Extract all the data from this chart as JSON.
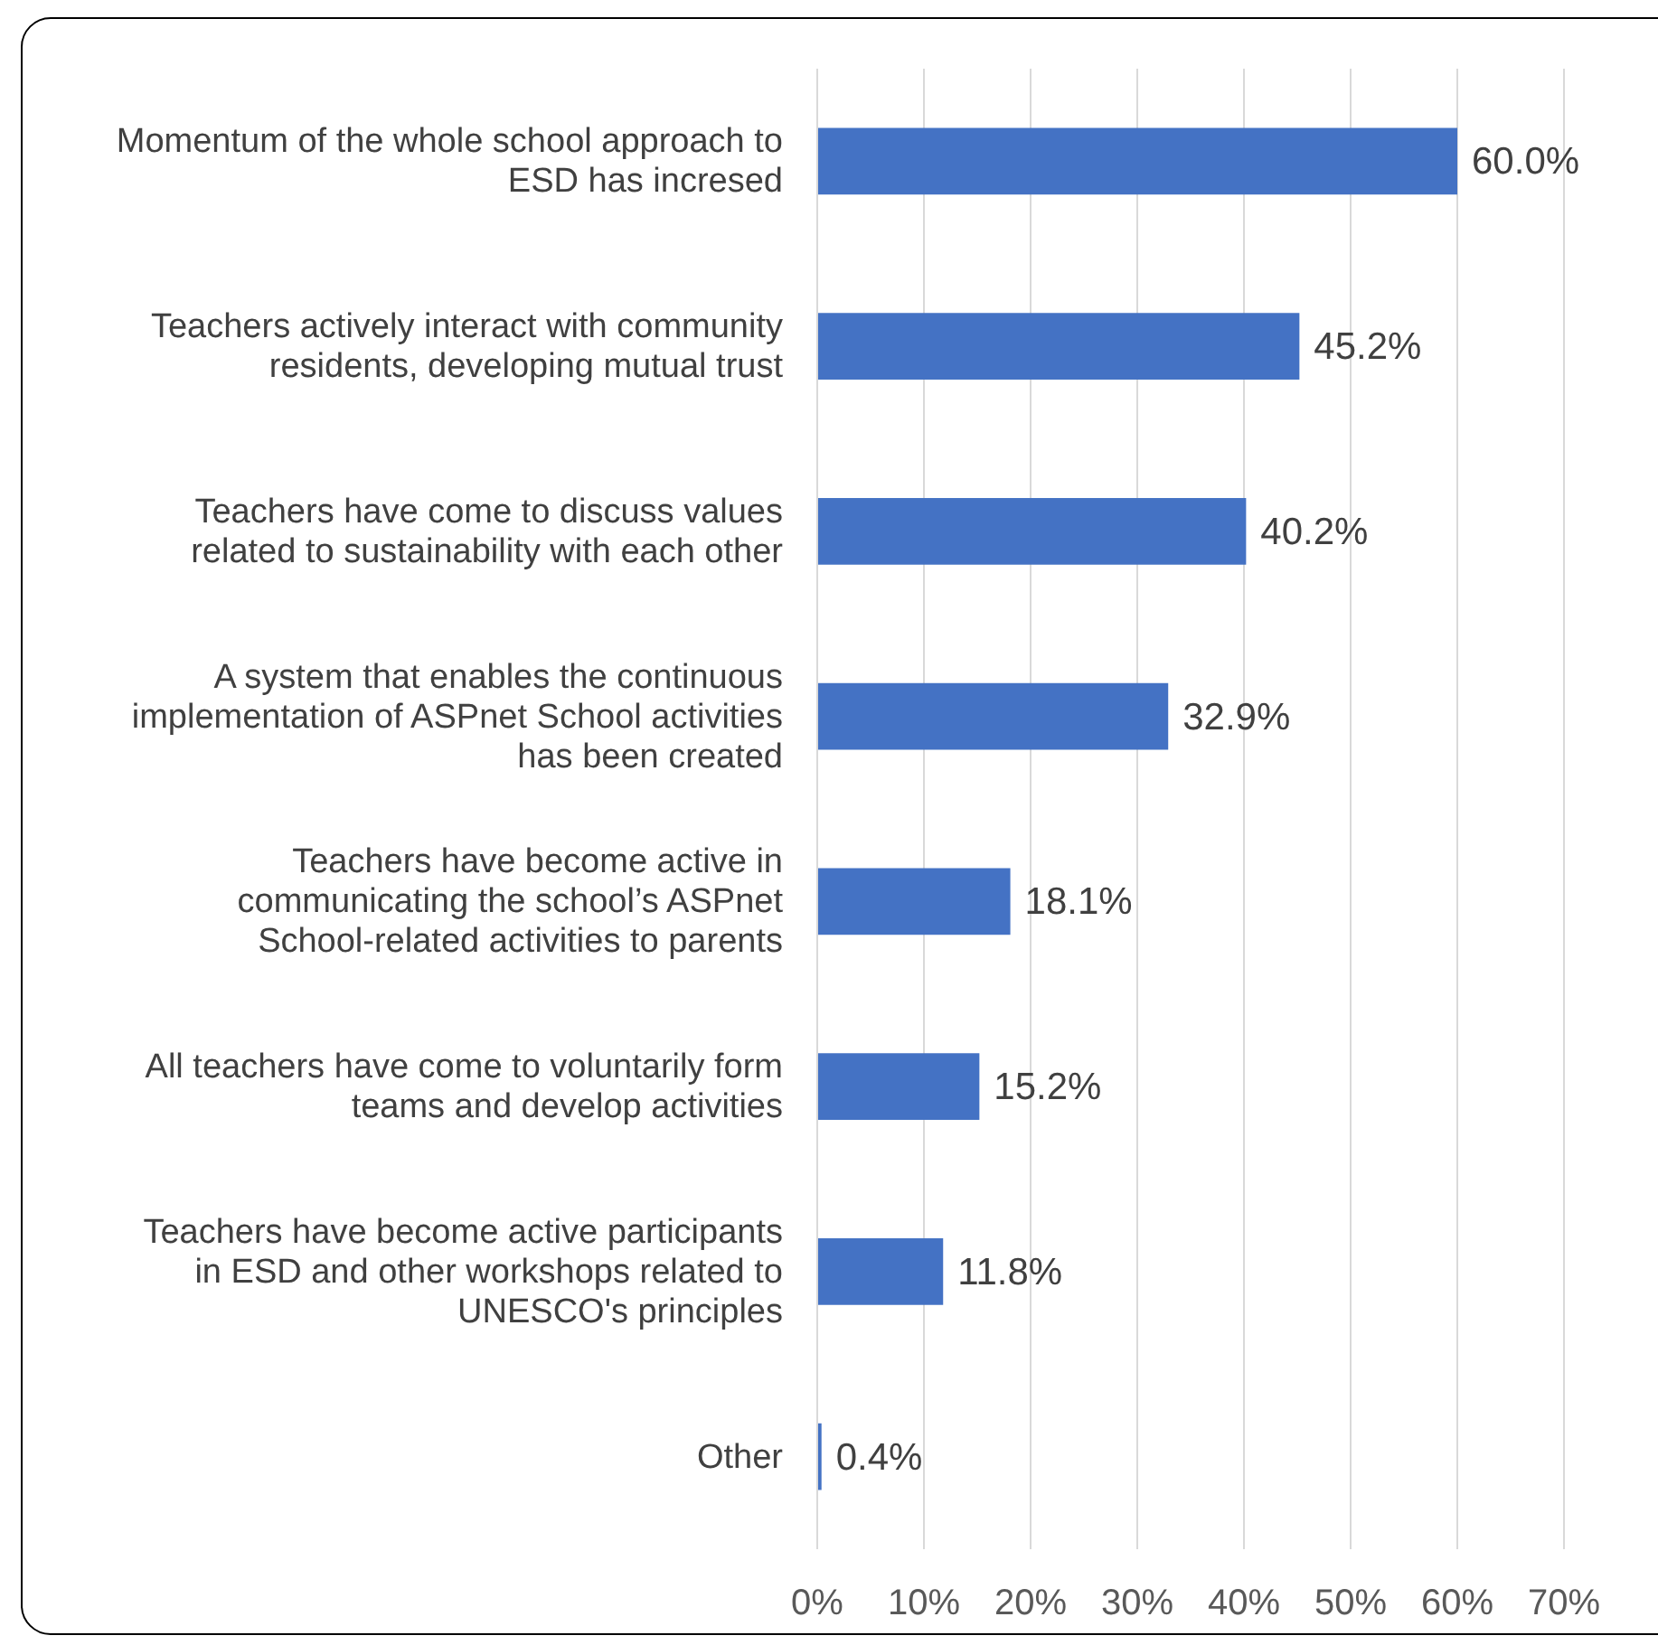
{
  "chart_data": {
    "type": "bar",
    "orientation": "horizontal",
    "categories": [
      "Momentum of the whole school approach to ESD has incresed",
      "Teachers actively interact with community residents, developing mutual trust",
      "Teachers have come to discuss values related to sustainability with each other",
      "A system that enables the continuous implementation of ASPnet School activities has been created",
      "Teachers have become active in communicating the school’s ASPnet School-related activities to parents",
      "All teachers have come to voluntarily form teams and develop activities",
      "Teachers have become active participants in ESD and other workshops related to UNESCO's principles",
      "Other"
    ],
    "values": [
      60.0,
      45.2,
      40.2,
      32.9,
      18.1,
      15.2,
      11.8,
      0.4
    ],
    "value_labels": [
      "60.0%",
      "45.2%",
      "40.2%",
      "32.9%",
      "18.1%",
      "15.2%",
      "11.8%",
      "0.4%"
    ],
    "color": "#4472c4",
    "xlim": [
      0,
      70
    ],
    "xticks": [
      {
        "value": 0,
        "label": "0%"
      },
      {
        "value": 10,
        "label": "10%"
      },
      {
        "value": 20,
        "label": "20%"
      },
      {
        "value": 30,
        "label": "30%"
      },
      {
        "value": 40,
        "label": "40%"
      },
      {
        "value": 50,
        "label": "50%"
      },
      {
        "value": 60,
        "label": "60%"
      },
      {
        "value": 70,
        "label": "70%"
      }
    ],
    "grid": "x"
  }
}
